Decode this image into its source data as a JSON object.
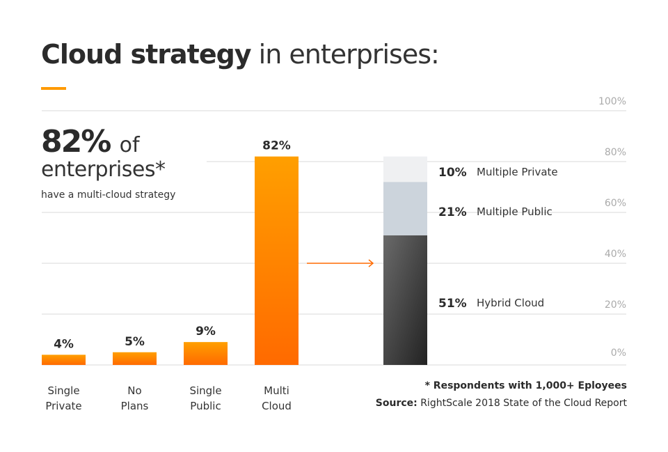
{
  "title": {
    "bold": "Cloud strategy",
    "light": "in enterprises:"
  },
  "headline": {
    "value": "82%",
    "of": "of",
    "line2": "enterprises*",
    "line3": "have a multi-cloud strategy"
  },
  "colors": {
    "accent": "#ff9a00",
    "bar_top": "#ff9f00",
    "bar_bottom": "#ff6a00",
    "arrow": "#ff6a00",
    "multiple_private": "#eff0f2",
    "multiple_public": "#ccd4dc",
    "hybrid_top": "#6a6a6a",
    "hybrid_bottom": "#222222",
    "grid": "#d9d9d9",
    "tick": "#aaaaaa"
  },
  "chart_data": [
    {
      "type": "bar",
      "categories": [
        [
          "Single",
          "Private"
        ],
        [
          "No",
          "Plans"
        ],
        [
          "Single",
          "Public"
        ],
        [
          "Multi",
          "Cloud"
        ]
      ],
      "values": [
        4,
        5,
        9,
        82
      ],
      "data_labels": [
        "4%",
        "5%",
        "9%",
        "82%"
      ],
      "ylim": [
        0,
        100
      ],
      "yticks": [
        "0%",
        "20%",
        "40%",
        "60%",
        "80%",
        "100%"
      ],
      "grid": true
    },
    {
      "type": "bar",
      "stacked": true,
      "series": [
        {
          "name": "Hybrid Cloud",
          "value": 51,
          "label": "51%"
        },
        {
          "name": "Multiple Public",
          "value": 21,
          "label": "21%"
        },
        {
          "name": "Multiple Private",
          "value": 10,
          "label": "10%"
        }
      ],
      "ylim": [
        0,
        100
      ]
    }
  ],
  "footnote": "* Respondents with 1,000+ Eployees",
  "source": {
    "label": "Source:",
    "text": "RightScale 2018 State of the Cloud Report"
  }
}
